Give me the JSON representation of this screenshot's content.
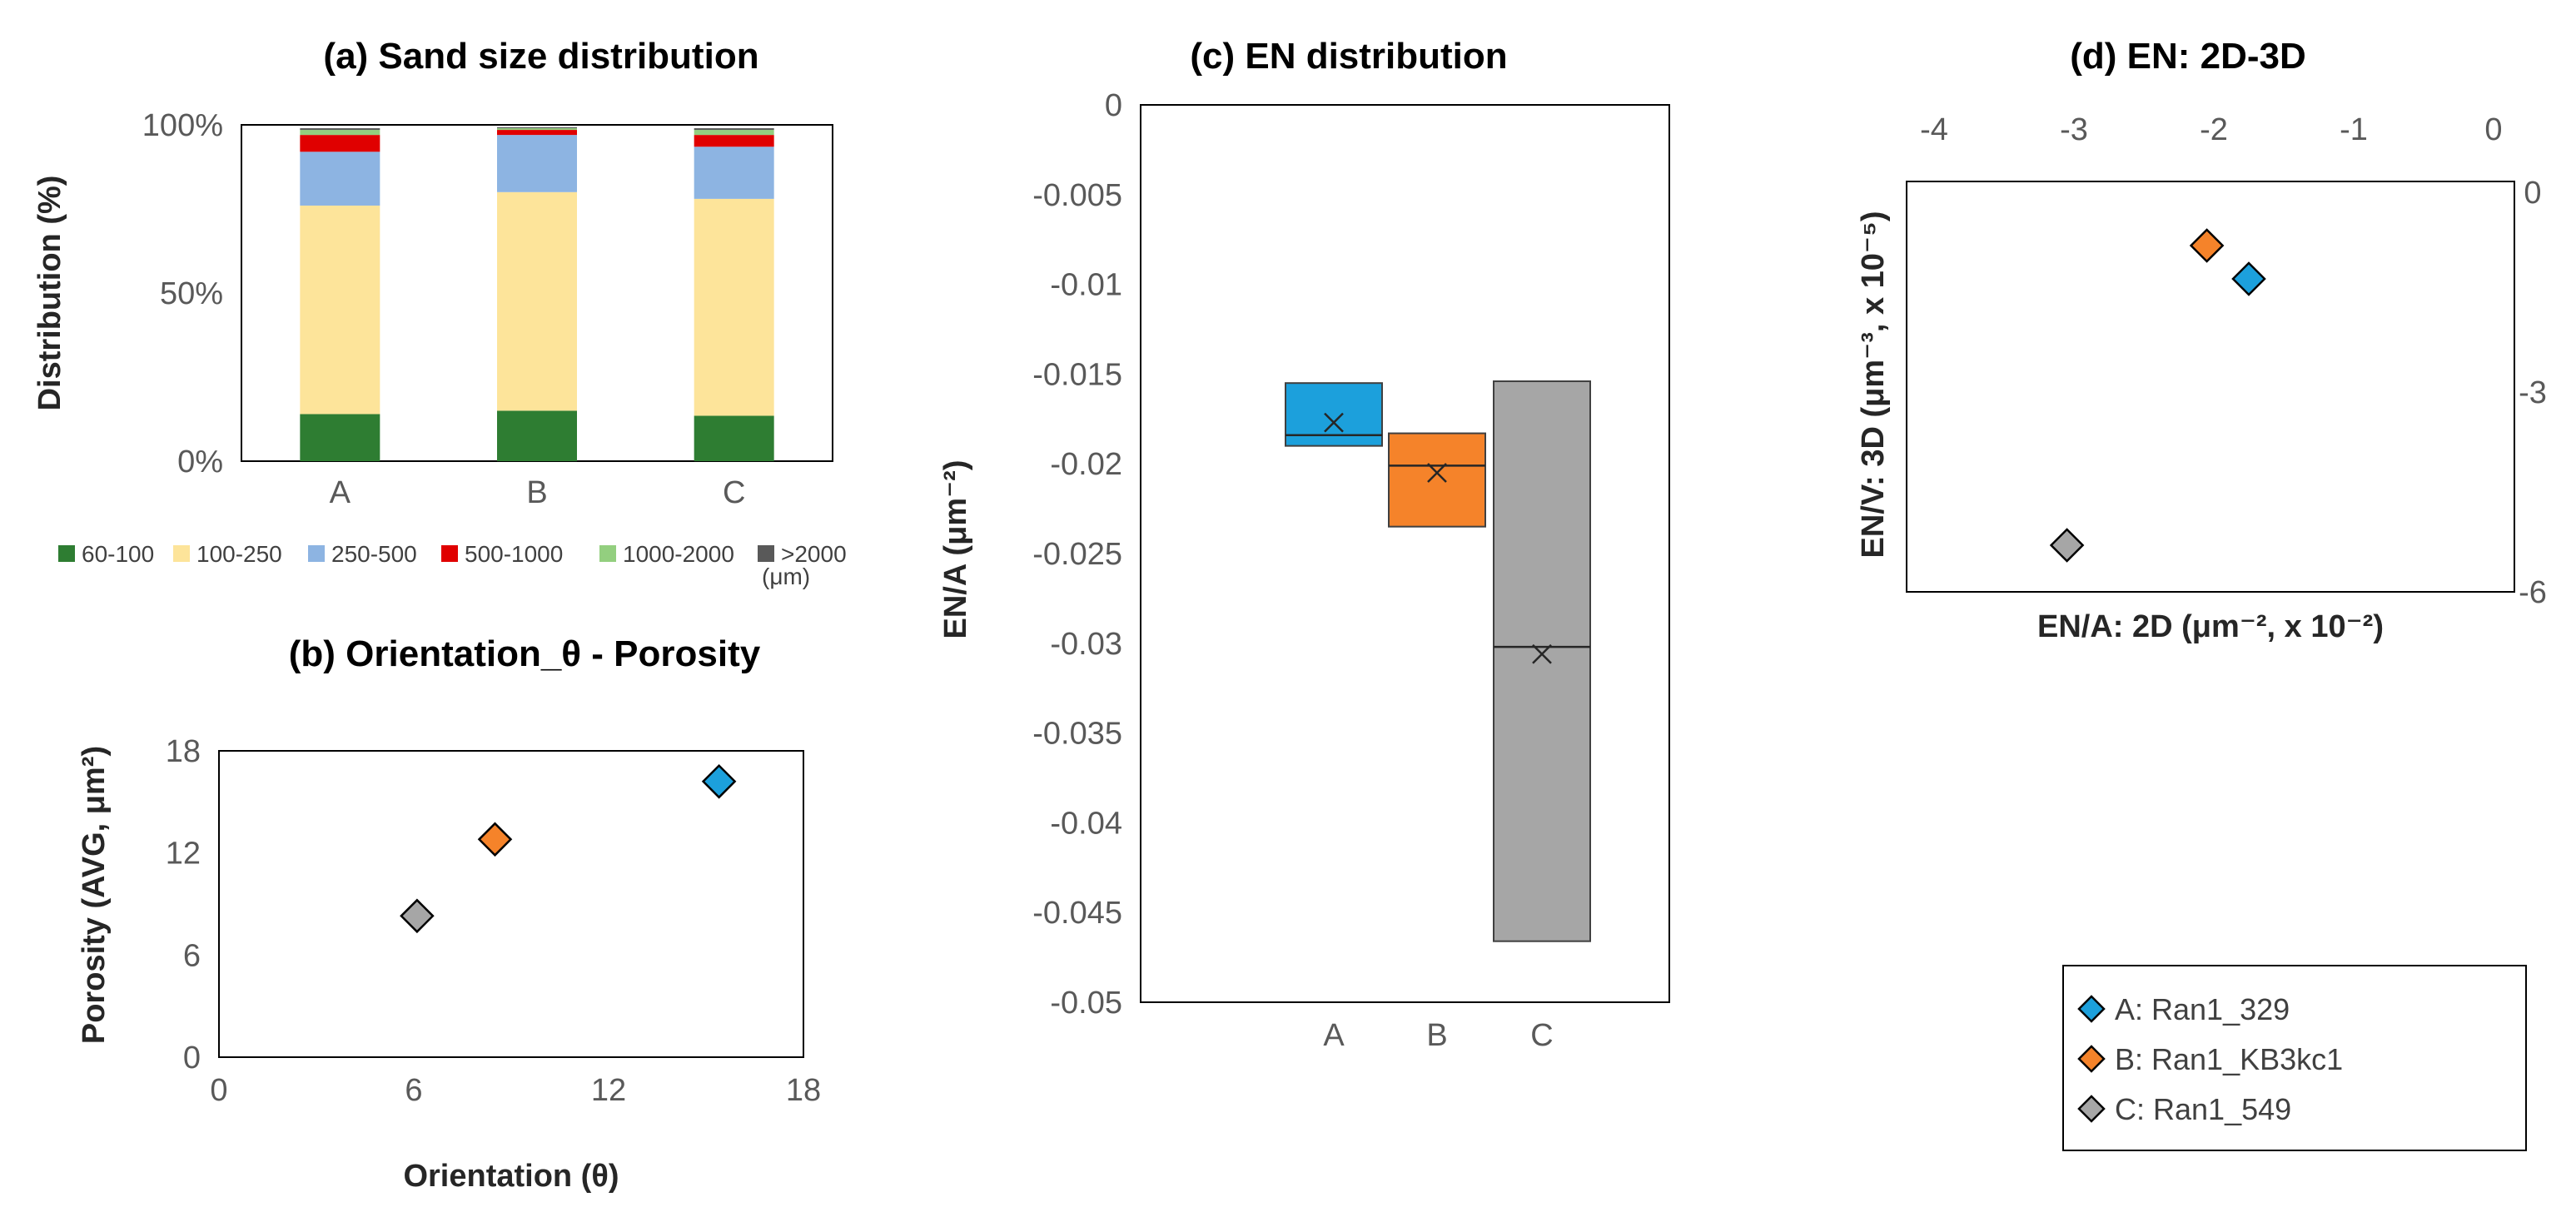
{
  "colors": {
    "A": "#1ca0dc",
    "B": "#f5832a",
    "C": "#a6a6a6",
    "stack": [
      "#2e7d32",
      "#fde49a",
      "#8db4e2",
      "#e00000",
      "#93cf7f",
      "#595959"
    ]
  },
  "chart_data": [
    {
      "id": "a",
      "type": "bar",
      "stacked": true,
      "title": "(a) Sand size distribution",
      "xlabel": "",
      "ylabel": "Distribution (%)",
      "categories": [
        "A",
        "B",
        "C"
      ],
      "ylim": [
        0,
        100
      ],
      "yticks": [
        0,
        50,
        100
      ],
      "ytick_labels": [
        "0%",
        "50%",
        "100%"
      ],
      "series": [
        {
          "name": "60-100",
          "values": [
            14,
            15,
            13.5
          ]
        },
        {
          "name": "100-250",
          "values": [
            62,
            65,
            64.5
          ]
        },
        {
          "name": "250-500",
          "values": [
            16,
            17,
            15.5
          ]
        },
        {
          "name": "500-1000",
          "values": [
            5,
            1.5,
            3.5
          ]
        },
        {
          "name": "1000-2000",
          "values": [
            1.5,
            0.5,
            1.5
          ]
        },
        {
          "name": ">2000",
          "values": [
            0.5,
            0.3,
            0.5
          ]
        }
      ],
      "legend_unit": "(μm)"
    },
    {
      "id": "b",
      "type": "scatter",
      "title": "(b) Orientation_θ - Porosity",
      "xlabel": "Orientation (θ)",
      "ylabel": "Porosity (AVG, μm²)",
      "xlim": [
        0,
        18
      ],
      "ylim": [
        0,
        18
      ],
      "xticks": [
        0,
        6,
        12,
        18
      ],
      "yticks": [
        0,
        6,
        12,
        18
      ],
      "points": [
        {
          "series": "A",
          "x": 15.4,
          "y": 16.2
        },
        {
          "series": "B",
          "x": 8.5,
          "y": 12.8
        },
        {
          "series": "C",
          "x": 6.1,
          "y": 8.3
        }
      ]
    },
    {
      "id": "c",
      "type": "box",
      "title": "(c) EN distribution",
      "xlabel": "",
      "ylabel": "EN/A (μm⁻²)",
      "categories": [
        "A",
        "B",
        "C"
      ],
      "ylim": [
        -0.05,
        0
      ],
      "yticks": [
        0,
        -0.005,
        -0.01,
        -0.015,
        -0.02,
        -0.025,
        -0.03,
        -0.035,
        -0.04,
        -0.045,
        -0.05
      ],
      "ytick_labels": [
        "0",
        "-0.005",
        "-0.01",
        "-0.015",
        "-0.02",
        "-0.025",
        "-0.03",
        "-0.035",
        "-0.04",
        "-0.045",
        "-0.05"
      ],
      "boxes": [
        {
          "series": "A",
          "q1": -0.019,
          "median": -0.0184,
          "q3": -0.0155,
          "mean": -0.0177
        },
        {
          "series": "B",
          "q1": -0.0235,
          "median": -0.0201,
          "q3": -0.0183,
          "mean": -0.0205
        },
        {
          "series": "C",
          "q1": -0.0466,
          "median": -0.0302,
          "q3": -0.0154,
          "mean": -0.0306
        }
      ]
    },
    {
      "id": "d",
      "type": "scatter",
      "title": "(d) EN: 2D-3D",
      "xlabel": "EN/A: 2D (μm⁻², x 10⁻²)",
      "ylabel": "EN/V: 3D (μm⁻³, x 10⁻⁵)",
      "xlim": [
        -4,
        0
      ],
      "ylim": [
        -6,
        0
      ],
      "xticks": [
        -4,
        -3,
        -2,
        -1,
        0
      ],
      "yticks": [
        0,
        -3,
        -6
      ],
      "points": [
        {
          "series": "A",
          "x": -1.75,
          "y": -1.3
        },
        {
          "series": "B",
          "x": -2.05,
          "y": -0.8
        },
        {
          "series": "C",
          "x": -3.05,
          "y": -5.3
        }
      ]
    }
  ],
  "legend": [
    {
      "series": "A",
      "label": "A: Ran1_329"
    },
    {
      "series": "B",
      "label": "B: Ran1_KB3kc1"
    },
    {
      "series": "C",
      "label": "C: Ran1_549"
    }
  ]
}
